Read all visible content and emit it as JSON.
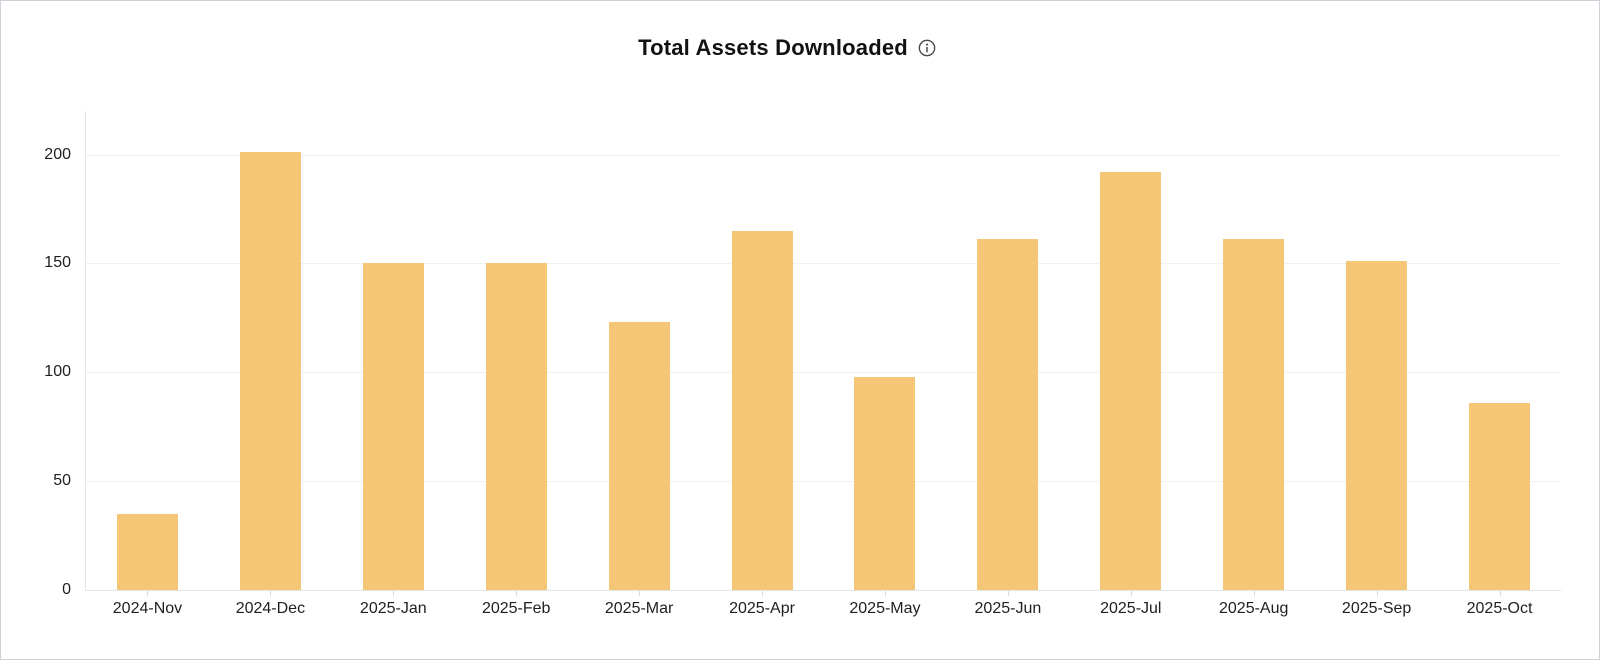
{
  "header": {
    "title": "Total Assets Downloaded",
    "info_icon": "info-circle-icon"
  },
  "colors": {
    "bar": "#f5c676",
    "grid": "#f0f1f2",
    "axis": "#e3e5e8",
    "tick": "#d9dce0",
    "label": "#1f1f1f",
    "title": "#121212",
    "icon": "#474747",
    "card_border": "#cdd2d9",
    "background": "#ffffff"
  },
  "chart_data": {
    "type": "bar",
    "title": "Total Assets Downloaded",
    "categories": [
      "2024-Nov",
      "2024-Dec",
      "2025-Jan",
      "2025-Feb",
      "2025-Mar",
      "2025-Apr",
      "2025-May",
      "2025-Jun",
      "2025-Jul",
      "2025-Aug",
      "2025-Sep",
      "2025-Oct"
    ],
    "values": [
      35,
      201,
      150,
      150,
      123,
      165,
      98,
      161,
      192,
      161,
      151,
      86
    ],
    "xlabel": "",
    "ylabel": "",
    "ylim": [
      0,
      220
    ],
    "yticks": [
      0,
      50,
      100,
      150,
      200
    ],
    "grid": true,
    "legend": false,
    "bar_color": "#f5c676"
  }
}
